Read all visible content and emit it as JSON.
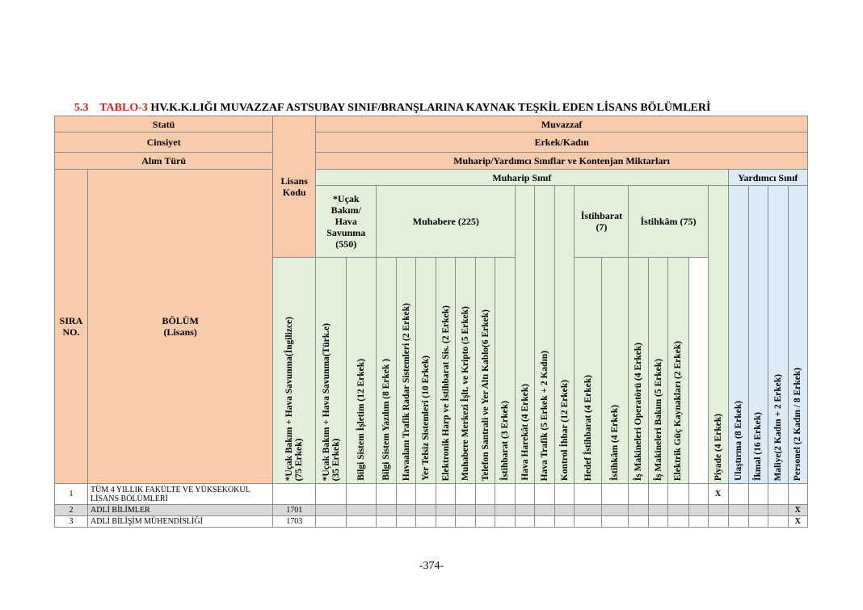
{
  "title": {
    "section": "5.3",
    "table_id": "TABLO-3",
    "text": "HV.K.K.LIĞI MUVAZZAF ASTSUBAY SINIF/BRANŞLARINA KAYNAK TEŞKİL EDEN LİSANS BÖLÜMLERİ"
  },
  "header": {
    "statu_label": "Statü",
    "statu_value": "Muvazzaf",
    "cinsiyet_label": "Cinsiyet",
    "cinsiyet_value": "Erkek/Kadın",
    "alim_label": "Alım Türü",
    "alim_value": "Muharip/Yardımcı Sınıflar ve Kontenjan Miktarları",
    "sira": "SIRA NO.",
    "bolum": "BÖLÜM (Lisans)",
    "lisans_kodu": "Lisans Kodu",
    "muharip": "Muharip Sınıf",
    "yardimci": "Yardımcı Sınıf",
    "groups": {
      "ucak": "*Uçak Bakım/ Hava Savunma (550)",
      "muhabere": "Muhabere (225)",
      "istihbarat": "İstihbarat (7)",
      "istihkam": "İstihkâm (75)"
    }
  },
  "columns": [
    "*Uçak Bakım + Hava Savunma(İngilizce)\n(75 Erkek)",
    "*Uçak Bakım + Hava Savunma(Türk.e)\n(35 Erkek)",
    "Bilgi Sistem İşletim (12 Erkek)",
    "Bilgi Sistem Yazılım (8 Erkek )",
    "Havaalanı Trafik Radar Sistemleri (2 Erkek)",
    "Yer Telsiz Sistemleri (10 Erkek)",
    "Elektronik Harp ve İstihbarat Sis. (2 Erkek)",
    "Muhabere Merkezi İşlt. ve Kripto (5 Erkek)",
    "Telefon Santrali ve Yer Altı Kablo(6 Erkek)",
    "Hava Harekât (4 Erkek)",
    "Hava Trafik (5 Erkek + 2 Kadın)",
    "Kontrol İhbar (12 Erkek)",
    "İstihbarat (3 Erkek)",
    "Hedef İstihbarat (4 Erkek)",
    "İstihkâm (4 Erkek)",
    "İş Makineleri Operatörü (4 Erkek)",
    "İş Makineleri Bakım (5 Erkek)",
    "Elektrik Güç Kaynakları (2 Erkek)",
    "Piyade (4 Erkek)",
    "Ulaştırma (8 Erkek)",
    "İkmal (16 Erkek)",
    "Maliye(2 Kadın + 2 Erkek)",
    "Personel (2 Kadın / 8 Erkek)"
  ],
  "rows": [
    {
      "no": "1",
      "bolum": "TÜM 4 YILLIK FAKÜLTE VE YÜKSEKOKUL LİSANS BÖLÜMLERİ",
      "kod": "",
      "marks": {
        "18": "X"
      }
    },
    {
      "no": "2",
      "bolum": "ADLİ BİLİMLER",
      "kod": "1701",
      "marks": {
        "22": "X"
      }
    },
    {
      "no": "3",
      "bolum": "ADLİ BİLİŞİM MÜHENDİSLİĞİ",
      "kod": "1703",
      "marks": {
        "22": "X"
      }
    }
  ],
  "page_number": "-374-"
}
